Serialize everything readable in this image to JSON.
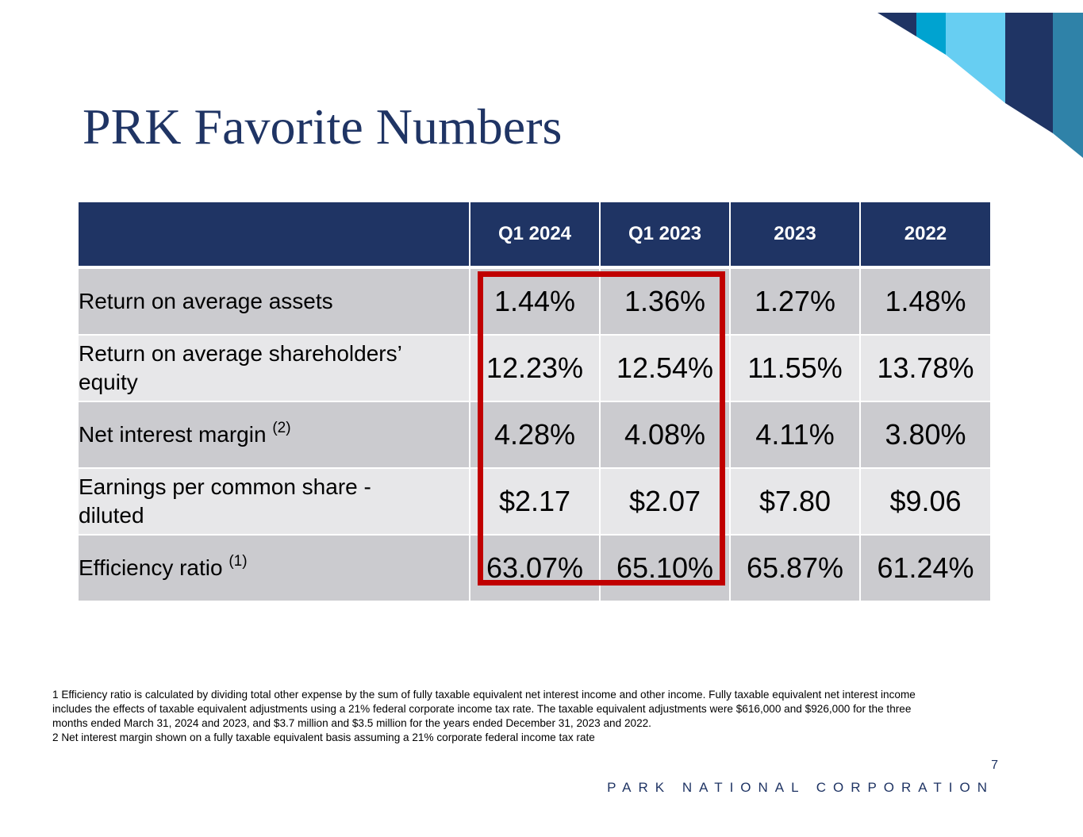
{
  "title": "PRK Favorite Numbers",
  "table": {
    "headers": [
      "",
      "Q1 2024",
      "Q1 2023",
      "2023",
      "2022"
    ],
    "rows": [
      {
        "label": "Return on average assets",
        "label_line2": "",
        "note": "",
        "values": [
          "1.44%",
          "1.36%",
          "1.27%",
          "1.48%"
        ]
      },
      {
        "label": "Return on average shareholders’",
        "label_line2": "equity",
        "note": "",
        "values": [
          "12.23%",
          "12.54%",
          "11.55%",
          "13.78%"
        ]
      },
      {
        "label": "Net interest margin",
        "label_line2": "",
        "note": "(2)",
        "values": [
          "4.28%",
          "4.08%",
          "4.11%",
          "3.80%"
        ]
      },
      {
        "label": "Earnings per common share -",
        "label_line2": "diluted",
        "note": "",
        "values": [
          "$2.17",
          "$2.07",
          "$7.80",
          "$9.06"
        ]
      },
      {
        "label": "Efficiency ratio",
        "label_line2": "",
        "note": "(1)",
        "values": [
          "63.07%",
          "65.10%",
          "65.87%",
          "61.24%"
        ]
      }
    ]
  },
  "footnotes": [
    "1   Efficiency ratio is calculated by dividing total other expense by the sum of fully taxable equivalent net interest income and other income. Fully taxable equivalent net interest income includes the effects of taxable equivalent adjustments using a 21% federal corporate income tax rate. The taxable equivalent adjustments were $616,000 and $926,000 for the three months ended March 31, 2024 and 2023, and $3.7 million and $3.5 million for the years ended December 31, 2023 and 2022.",
    "2   Net interest margin shown on a fully taxable equivalent basis assuming a 21% corporate federal income tax rate"
  ],
  "page_number": "7",
  "brand": "PARK NATIONAL CORPORATION",
  "colors": {
    "navy": "#1f3464",
    "cyan": "#00a3d0",
    "light_blue": "#67cef2",
    "steel_blue": "#2f82a8",
    "highlight_red": "#c00000",
    "row_dark": "#cbcbcf",
    "row_light": "#e7e7e9"
  }
}
